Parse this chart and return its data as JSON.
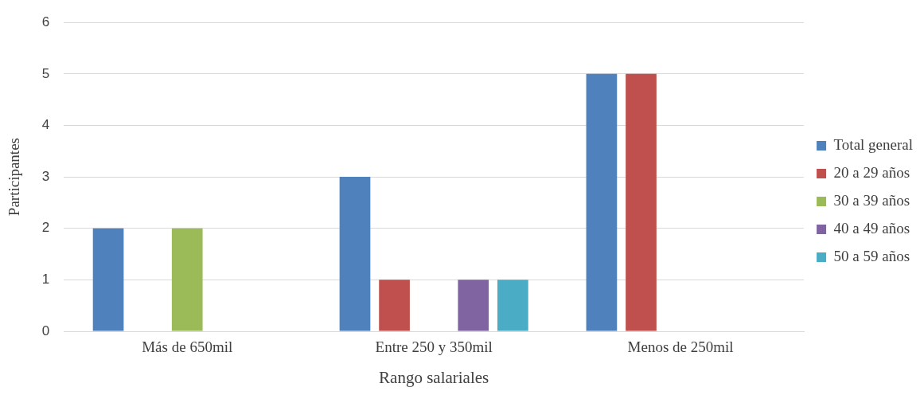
{
  "chart_data": {
    "type": "bar",
    "xlabel": "Rango salariales",
    "ylabel": "Participantes",
    "categories": [
      "Más de 650mil",
      "Entre 250 y 350mil",
      "Menos de 250mil"
    ],
    "series": [
      {
        "name": "Total general",
        "color": "#4f81bd",
        "values": [
          2,
          3,
          5
        ]
      },
      {
        "name": "20 a 29 años",
        "color": "#c0504d",
        "values": [
          0,
          1,
          5
        ]
      },
      {
        "name": "30 a 39 años",
        "color": "#9bbb59",
        "values": [
          2,
          0,
          0
        ]
      },
      {
        "name": "40 a 49 años",
        "color": "#8064a2",
        "values": [
          0,
          1,
          0
        ]
      },
      {
        "name": "50 a 59 años",
        "color": "#4bacc6",
        "values": [
          0,
          1,
          0
        ]
      }
    ],
    "ylim": [
      0,
      6
    ],
    "yticks": [
      0,
      1,
      2,
      3,
      4,
      5,
      6
    ],
    "grid": "y",
    "legend": "right"
  }
}
